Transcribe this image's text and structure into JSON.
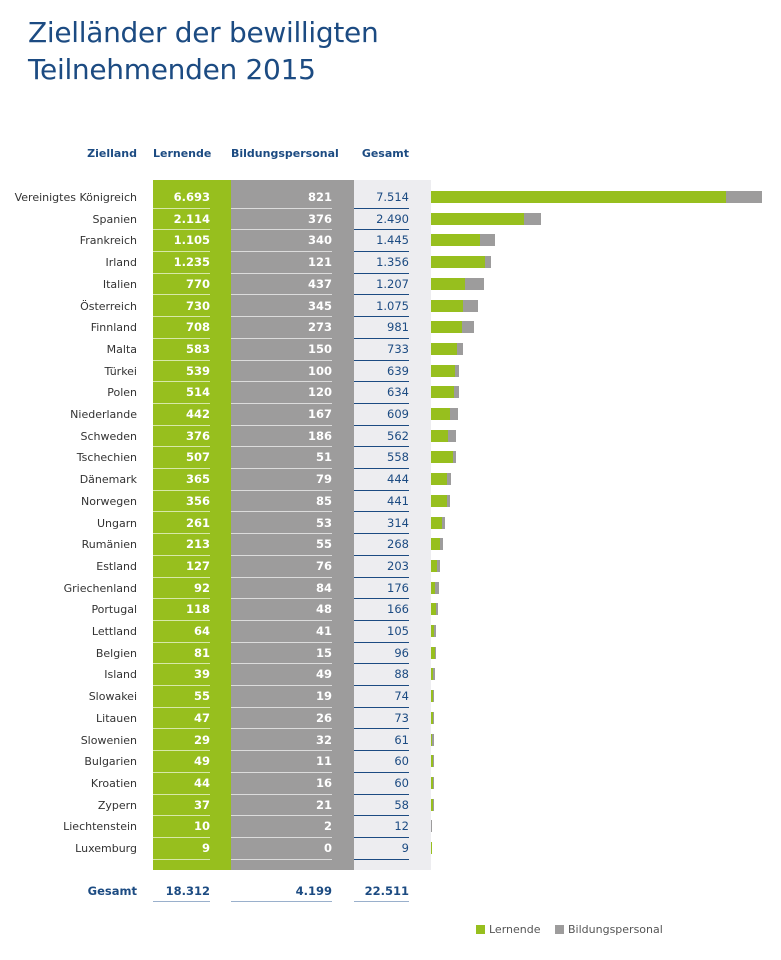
{
  "title_line1": "Zielländer der bewilligten",
  "title_line2": "Teilnehmenden 2015",
  "colors": {
    "lernende": "#97bf1e",
    "bildungspersonal": "#9d9c9c",
    "gesamt_bg": "#ededf0",
    "text": "#1c4b82"
  },
  "chart_data": {
    "type": "bar",
    "stacked": true,
    "orientation": "horizontal",
    "headers": [
      "Zielland",
      "Lernende",
      "Bildungspersonal",
      "Gesamt"
    ],
    "categories": [
      "Vereinigtes Königreich",
      "Spanien",
      "Frankreich",
      "Irland",
      "Italien",
      "Österreich",
      "Finnland",
      "Malta",
      "Türkei",
      "Polen",
      "Niederlande",
      "Schweden",
      "Tschechien",
      "Dänemark",
      "Norwegen",
      "Ungarn",
      "Rumänien",
      "Estland",
      "Griechenland",
      "Portugal",
      "Lettland",
      "Belgien",
      "Island",
      "Slowakei",
      "Litauen",
      "Slowenien",
      "Bulgarien",
      "Kroatien",
      "Zypern",
      "Liechtenstein",
      "Luxemburg"
    ],
    "series": [
      {
        "name": "Lernende",
        "values": [
          6693,
          2114,
          1105,
          1235,
          770,
          730,
          708,
          583,
          539,
          514,
          442,
          376,
          507,
          365,
          356,
          261,
          213,
          127,
          92,
          118,
          64,
          81,
          39,
          55,
          47,
          29,
          49,
          44,
          37,
          10,
          9
        ]
      },
      {
        "name": "Bildungspersonal",
        "values": [
          821,
          376,
          340,
          121,
          437,
          345,
          273,
          150,
          100,
          120,
          167,
          186,
          51,
          79,
          85,
          53,
          55,
          76,
          84,
          48,
          41,
          15,
          49,
          19,
          26,
          32,
          11,
          16,
          21,
          2,
          0
        ]
      }
    ],
    "gesamt": [
      7514,
      2490,
      1445,
      1356,
      1207,
      1075,
      981,
      733,
      639,
      634,
      609,
      562,
      558,
      444,
      441,
      314,
      268,
      203,
      176,
      166,
      105,
      96,
      88,
      74,
      73,
      61,
      60,
      60,
      58,
      12,
      9
    ],
    "totals": {
      "label": "Gesamt",
      "lernende": "18.312",
      "bildungspersonal": "4.199",
      "gesamt": "22.511"
    },
    "legend": [
      "Lernende",
      "Bildungspersonal"
    ],
    "legend_position": "bottom-right"
  }
}
